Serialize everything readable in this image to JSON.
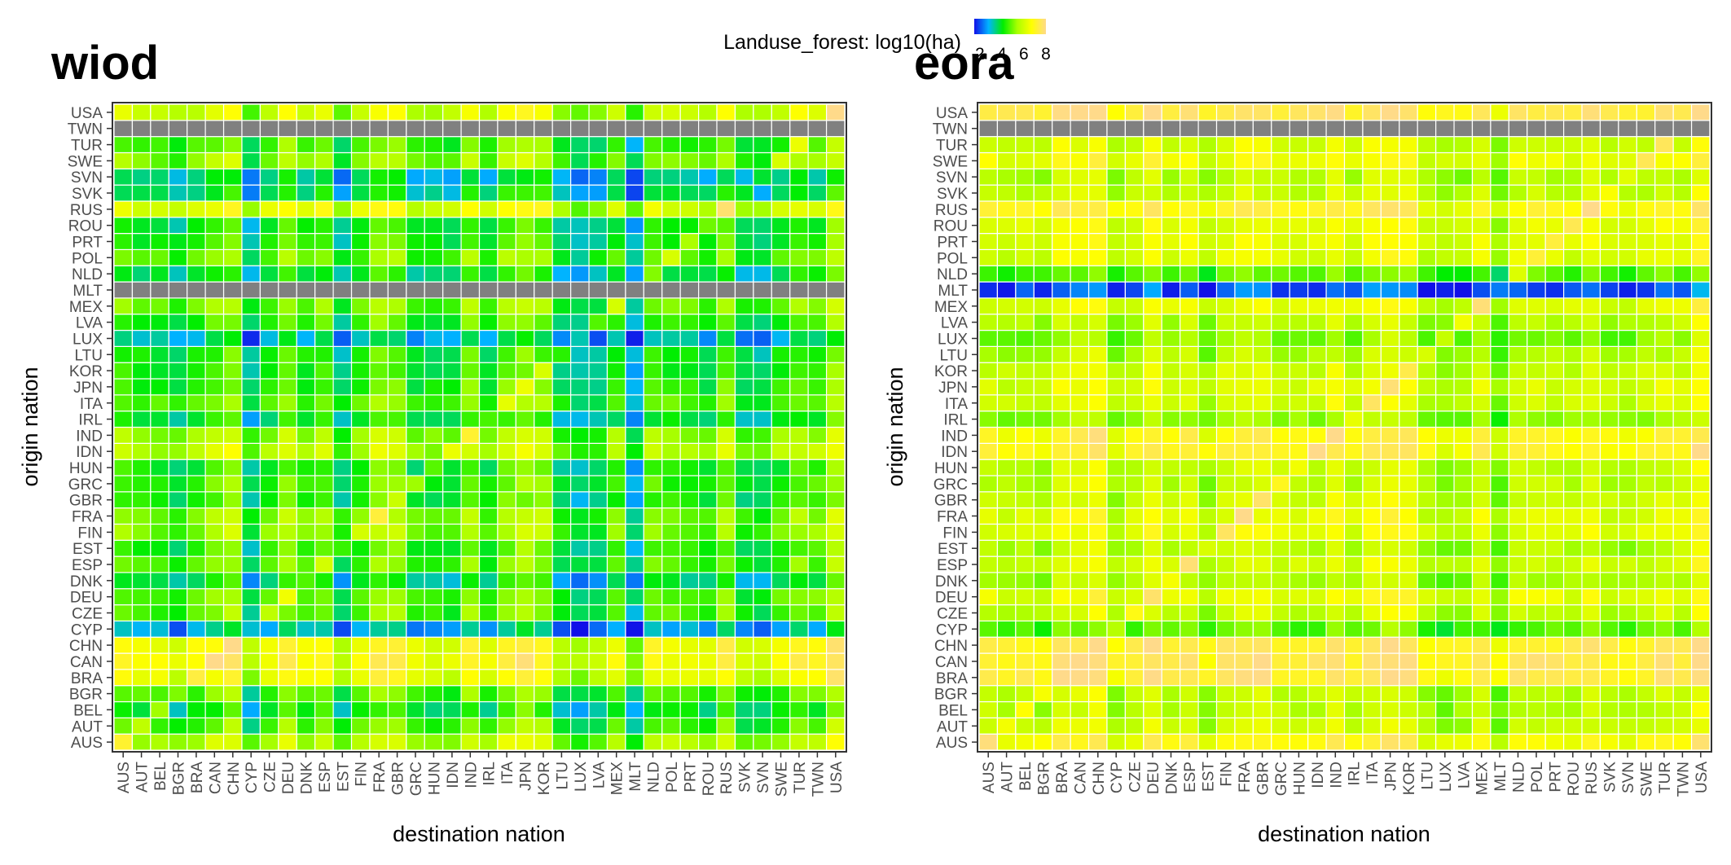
{
  "chart_data": {
    "type": "heatmap",
    "legend": {
      "title": "Landuse_forest: log10(ha)",
      "ticks": [
        2,
        4,
        6,
        8
      ],
      "colors": [
        "#1010e8",
        "#00b4ff",
        "#00ee00",
        "#aaff00",
        "#ffff00",
        "#ffda8a"
      ],
      "missing_color": "#808080",
      "placement": "top"
    },
    "categories": [
      "AUS",
      "AUT",
      "BEL",
      "BGR",
      "BRA",
      "CAN",
      "CHN",
      "CYP",
      "CZE",
      "DEU",
      "DNK",
      "ESP",
      "EST",
      "FIN",
      "FRA",
      "GBR",
      "GRC",
      "HUN",
      "IDN",
      "IND",
      "IRL",
      "ITA",
      "JPN",
      "KOR",
      "LTU",
      "LUX",
      "LVA",
      "MEX",
      "MLT",
      "NLD",
      "POL",
      "PRT",
      "ROU",
      "RUS",
      "SVK",
      "SVN",
      "SWE",
      "TUR",
      "TWN",
      "USA"
    ],
    "panels": [
      {
        "title": "wiod",
        "xlabel": "destination nation",
        "ylabel": "origin nation",
        "missing_rows": [
          "TWN",
          "MLT"
        ],
        "row_levels": {
          "USA": 6.2,
          "TUR": 4.8,
          "SWE": 5.3,
          "SVN": 3.6,
          "SVK": 3.9,
          "RUS": 6.4,
          "ROU": 4.3,
          "PRT": 4.5,
          "POL": 5.0,
          "NLD": 4.1,
          "MEX": 5.1,
          "LVA": 4.6,
          "LUX": 3.3,
          "LTU": 4.4,
          "KOR": 4.4,
          "JPN": 4.6,
          "ITA": 5.0,
          "IRL": 4.1,
          "IND": 5.5,
          "IDN": 5.8,
          "HUN": 4.4,
          "GRC": 4.7,
          "GBR": 4.5,
          "FRA": 5.3,
          "FIN": 5.3,
          "EST": 4.6,
          "ESP": 4.9,
          "DNK": 3.9,
          "DEU": 5.0,
          "CZE": 4.9,
          "CYP": 3.1,
          "CHN": 6.8,
          "CAN": 6.9,
          "BRA": 6.6,
          "BGR": 4.9,
          "BEL": 4.2,
          "AUT": 4.9,
          "AUS": 5.8
        },
        "col_offsets": {
          "AUS": 0.0,
          "AUT": -0.3,
          "BEL": -0.3,
          "BGR": -0.8,
          "BRA": -0.3,
          "CAN": 0.2,
          "CHN": 0.6,
          "CYP": -1.3,
          "CZE": -0.3,
          "DEU": 0.4,
          "DNK": -0.3,
          "ESP": 0.2,
          "EST": -1.1,
          "FIN": -0.2,
          "FRA": 0.5,
          "GBR": 0.4,
          "GRC": -0.6,
          "HUN": -0.6,
          "IDN": -0.7,
          "IND": 0.4,
          "IRL": -0.6,
          "ITA": 0.4,
          "JPN": 0.7,
          "KOR": 0.4,
          "LTU": -1.0,
          "LUX": -1.4,
          "LVA": -1.1,
          "MEX": -0.2,
          "MLT": -1.7,
          "NLD": 0.0,
          "POL": -0.2,
          "PRT": -0.3,
          "ROU": -0.6,
          "RUS": 0.3,
          "SVK": -0.9,
          "SVN": -1.0,
          "SWE": -0.3,
          "TUR": 0.2,
          "TWN": -0.1,
          "USA": 0.8
        }
      },
      {
        "title": "eora",
        "xlabel": "destination nation",
        "ylabel": "origin nation",
        "missing_rows": [
          "TWN"
        ],
        "row_levels": {
          "USA": 7.3,
          "TUR": 5.9,
          "SWE": 6.3,
          "SVN": 5.5,
          "SVK": 5.6,
          "RUS": 6.8,
          "ROU": 6.1,
          "PRT": 6.1,
          "POL": 6.0,
          "NLD": 4.6,
          "MLT": 1.9,
          "MEX": 6.1,
          "LVA": 5.5,
          "LUX": 5.0,
          "LTU": 5.4,
          "KOR": 5.8,
          "JPN": 6.0,
          "ITA": 5.9,
          "IRL": 5.1,
          "IND": 6.8,
          "IDN": 6.9,
          "HUN": 5.6,
          "GRC": 5.6,
          "GBR": 5.8,
          "FRA": 6.1,
          "FIN": 6.1,
          "EST": 5.5,
          "ESP": 5.9,
          "DNK": 5.4,
          "DEU": 6.2,
          "CZE": 5.7,
          "CYP": 4.6,
          "CHN": 7.2,
          "CAN": 7.3,
          "BRA": 7.2,
          "BGR": 5.6,
          "BEL": 5.6,
          "AUT": 5.7,
          "AUS": 6.6
        },
        "col_offsets": {
          "AUS": 0.1,
          "AUT": -0.1,
          "BEL": 0.0,
          "BGR": -0.2,
          "BRA": 0.5,
          "CAN": 0.5,
          "CHN": 0.8,
          "CYP": -0.4,
          "CZE": 0.0,
          "DEU": 0.6,
          "DNK": 0.0,
          "ESP": 0.4,
          "EST": -0.4,
          "FIN": 0.2,
          "FRA": 0.5,
          "GBR": 0.5,
          "GRC": 0.1,
          "HUN": 0.0,
          "IDN": 0.1,
          "IND": 0.6,
          "IRL": 0.0,
          "ITA": 0.5,
          "JPN": 0.8,
          "KOR": 0.6,
          "LTU": -0.3,
          "LUX": -0.5,
          "LVA": -0.3,
          "MEX": 0.3,
          "MLT": -0.8,
          "NLD": 0.2,
          "POL": 0.2,
          "PRT": 0.1,
          "ROU": 0.0,
          "RUS": 0.4,
          "SVK": -0.1,
          "SVN": -0.2,
          "SWE": 0.1,
          "TUR": 0.3,
          "TWN": 0.2,
          "USA": 0.9
        }
      }
    ]
  }
}
